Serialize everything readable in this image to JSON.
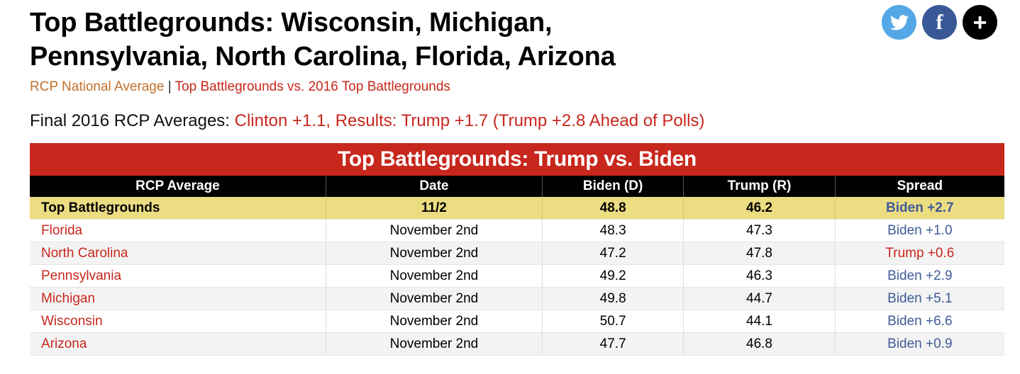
{
  "page": {
    "title_line1": "Top Battlegrounds: Wisconsin, Michigan,",
    "title_line2": "Pennsylvania, North Carolina, Florida, Arizona",
    "nav": {
      "link1": "RCP National Average",
      "separator": "|",
      "link2": "Top Battlegrounds vs. 2016 Top Battlegrounds"
    },
    "finals": {
      "label": "Final 2016 RCP Averages: ",
      "value": "Clinton +1.1, Results: Trump +1.7 (Trump +2.8 Ahead of Polls)"
    }
  },
  "social": {
    "twitter": {
      "icon": "twitter-icon",
      "color": "#55a8e6"
    },
    "facebook": {
      "icon": "facebook-icon",
      "glyph": "f",
      "color": "#3a5896"
    },
    "more": {
      "icon": "plus-icon",
      "glyph": "+",
      "color": "#000000"
    }
  },
  "table": {
    "title": "Top Battlegrounds: Trump vs. Biden",
    "headers": [
      "RCP Average",
      "Date",
      "Biden (D)",
      "Trump (R)",
      "Spread"
    ],
    "average_row": {
      "name": "Top Battlegrounds",
      "date": "11/2",
      "biden": "48.8",
      "trump": "46.2",
      "spread": "Biden +2.7",
      "spread_party": "biden"
    },
    "rows": [
      {
        "name": "Florida",
        "date": "November 2nd",
        "biden": "48.3",
        "trump": "47.3",
        "spread": "Biden +1.0",
        "spread_party": "biden"
      },
      {
        "name": "North Carolina",
        "date": "November 2nd",
        "biden": "47.2",
        "trump": "47.8",
        "spread": "Trump +0.6",
        "spread_party": "trump"
      },
      {
        "name": "Pennsylvania",
        "date": "November 2nd",
        "biden": "49.2",
        "trump": "46.3",
        "spread": "Biden +2.9",
        "spread_party": "biden"
      },
      {
        "name": "Michigan",
        "date": "November 2nd",
        "biden": "49.8",
        "trump": "44.7",
        "spread": "Biden +5.1",
        "spread_party": "biden"
      },
      {
        "name": "Wisconsin",
        "date": "November 2nd",
        "biden": "50.7",
        "trump": "44.1",
        "spread": "Biden +6.6",
        "spread_party": "biden"
      },
      {
        "name": "Arizona",
        "date": "November 2nd",
        "biden": "47.7",
        "trump": "46.8",
        "spread": "Biden +0.9",
        "spread_party": "biden"
      }
    ]
  },
  "colors": {
    "accent_red": "#c8271d",
    "average_row": "#ecdc82",
    "biden_blue": "#3f5b97",
    "link_orange": "#c0702c"
  }
}
